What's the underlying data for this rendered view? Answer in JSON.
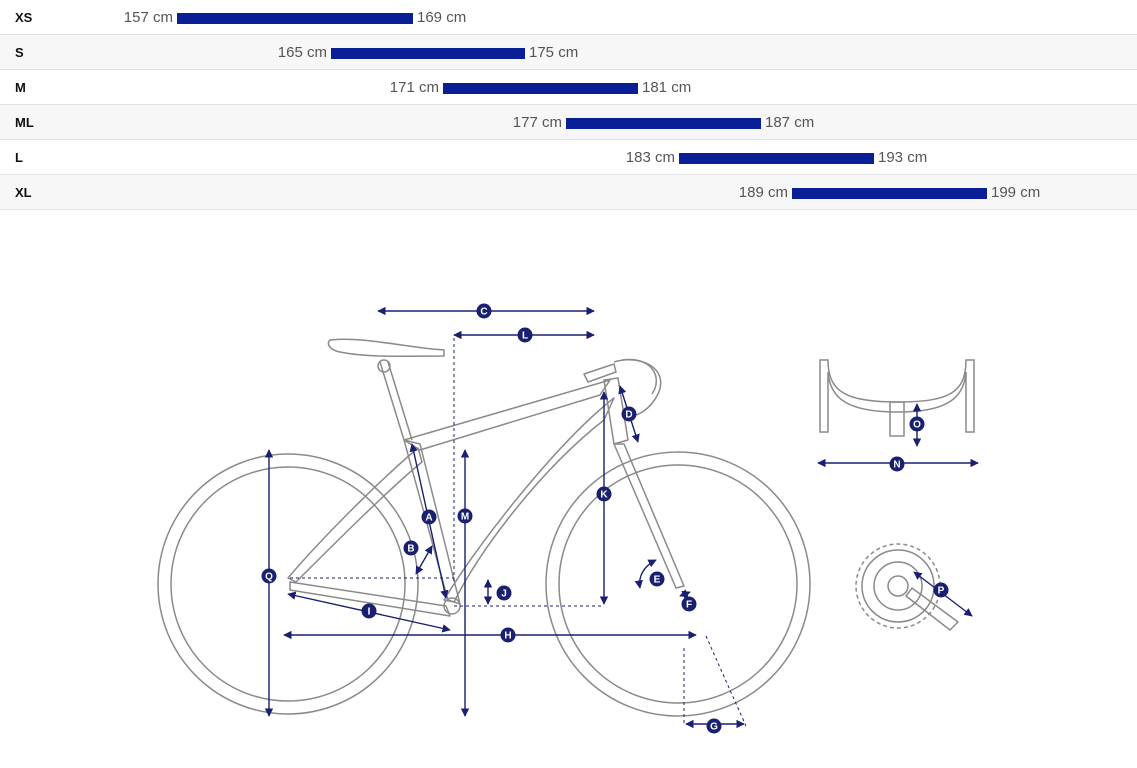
{
  "size_chart": {
    "rows": [
      {
        "size": "XS",
        "min": "157 cm",
        "max": "169 cm",
        "min_cm": 157,
        "max_cm": 169
      },
      {
        "size": "S",
        "min": "165 cm",
        "max": "175 cm",
        "min_cm": 165,
        "max_cm": 175
      },
      {
        "size": "M",
        "min": "171 cm",
        "max": "181 cm",
        "min_cm": 171,
        "max_cm": 181
      },
      {
        "size": "ML",
        "min": "177 cm",
        "max": "187 cm",
        "min_cm": 177,
        "max_cm": 187
      },
      {
        "size": "L",
        "min": "183 cm",
        "max": "193 cm",
        "min_cm": 183,
        "max_cm": 193
      },
      {
        "size": "XL",
        "min": "189 cm",
        "max": "199 cm",
        "min_cm": 189,
        "max_cm": 199
      }
    ]
  },
  "geometry_diagram": {
    "labels": [
      "A",
      "B",
      "C",
      "D",
      "E",
      "F",
      "G",
      "H",
      "I",
      "J",
      "K",
      "L",
      "M",
      "N",
      "O",
      "P",
      "Q"
    ]
  },
  "colors": {
    "bar": "#0a1e96",
    "dimension": "#1a2070",
    "frame_line": "#8a8a8a",
    "row_alt_bg": "#f7f7f7",
    "row_border": "#e2e2e2"
  }
}
